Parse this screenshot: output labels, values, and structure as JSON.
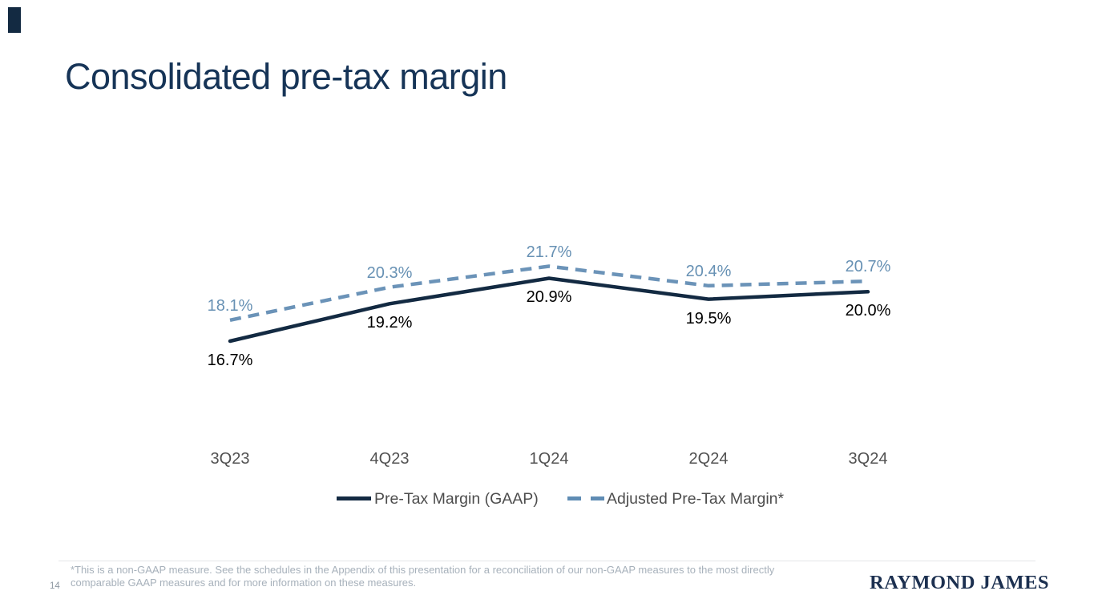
{
  "slide": {
    "title": "Consolidated pre-tax margin",
    "page_number": "14",
    "footnote_line1": "*This is a non-GAAP measure. See the schedules in the Appendix of this presentation for a reconciliation of our non-GAAP measures to the most directly",
    "footnote_line2": "comparable GAAP measures and for more information on these measures.",
    "logo_text": "RAYMOND JAMES"
  },
  "colors": {
    "title_navy": "#163457",
    "gaap_line": "#132a42",
    "adjusted_line": "#6b93b8",
    "adjusted_label_text": "#6791b4",
    "gaap_label_text": "#000000",
    "axis_label_gray": "#515151",
    "legend_text_gray": "#4d4d4d",
    "footnote_gray": "#a7b1bb",
    "page_number_gray": "#8d97a1",
    "logo_navy": "#1c3050",
    "divider_gray": "#e3e6e9",
    "background": "#ffffff"
  },
  "chart_data": {
    "type": "line",
    "title": "",
    "xlabel": "",
    "ylabel": "",
    "categories": [
      "3Q23",
      "4Q23",
      "1Q24",
      "2Q24",
      "3Q24"
    ],
    "series": [
      {
        "name": "Pre-Tax Margin (GAAP)",
        "style": "solid",
        "color": "#132a42",
        "values": [
          16.7,
          19.2,
          20.9,
          19.5,
          20.0
        ],
        "labels": [
          "16.7%",
          "19.2%",
          "20.9%",
          "19.5%",
          "20.0%"
        ]
      },
      {
        "name": "Adjusted Pre-Tax Margin*",
        "style": "dashed",
        "color": "#6b93b8",
        "values": [
          18.1,
          20.3,
          21.7,
          20.4,
          20.7
        ],
        "labels": [
          "18.1%",
          "20.3%",
          "21.7%",
          "20.4%",
          "20.7%"
        ]
      }
    ],
    "value_format": "percent",
    "data_labels": true,
    "gridlines": false,
    "y_axis_hidden": true,
    "legend_position": "bottom"
  }
}
